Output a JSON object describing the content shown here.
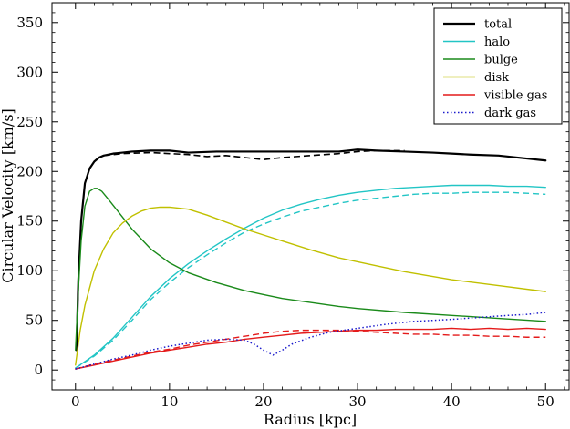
{
  "chart_data": {
    "type": "line",
    "xlabel": "Radius [kpc]",
    "ylabel": "Circular Velocity [km/s]",
    "xlim": [
      -2.5,
      52.5
    ],
    "ylim": [
      -20,
      370
    ],
    "xticks": [
      0,
      10,
      20,
      30,
      40,
      50
    ],
    "yticks": [
      0,
      50,
      100,
      150,
      200,
      250,
      300,
      350
    ],
    "legend_position": "top-right",
    "series": [
      {
        "name": "total",
        "color": "#000000",
        "style": "solid",
        "width": 2.2,
        "legend": true,
        "x": [
          0.1,
          0.3,
          0.6,
          1,
          1.5,
          2,
          2.5,
          3,
          4,
          5,
          6,
          8,
          10,
          12,
          15,
          18,
          20,
          22,
          25,
          28,
          30,
          32,
          35,
          38,
          40,
          42,
          45,
          48,
          50
        ],
        "y": [
          20,
          90,
          150,
          188,
          203,
          210,
          214,
          216,
          218,
          219,
          220,
          221,
          221,
          219,
          220,
          220,
          220,
          220,
          220,
          220,
          222,
          221,
          220,
          219,
          218,
          217,
          216,
          213,
          211
        ]
      },
      {
        "name": "",
        "color": "#000000",
        "style": "dashed",
        "width": 1.6,
        "legend": false,
        "x": [
          3,
          5,
          8,
          10,
          12,
          14,
          16,
          18,
          20,
          22,
          25,
          28,
          30,
          32,
          35
        ],
        "y": [
          216,
          218,
          219,
          218,
          217,
          215,
          216,
          214,
          212,
          214,
          216,
          218,
          220,
          221,
          221
        ]
      },
      {
        "name": "halo",
        "color": "#22c5c5",
        "style": "solid",
        "width": 1.4,
        "legend": true,
        "x": [
          0,
          2,
          4,
          6,
          8,
          10,
          12,
          14,
          16,
          18,
          20,
          22,
          24,
          26,
          28,
          30,
          32,
          34,
          36,
          38,
          40,
          42,
          44,
          46,
          48,
          50
        ],
        "y": [
          2,
          15,
          32,
          53,
          74,
          92,
          107,
          120,
          132,
          143,
          153,
          161,
          167,
          172,
          176,
          179,
          181,
          183,
          184,
          185,
          186,
          186,
          186,
          185,
          185,
          184
        ]
      },
      {
        "name": "",
        "color": "#22c5c5",
        "style": "dashed",
        "width": 1.4,
        "legend": false,
        "x": [
          0,
          2,
          4,
          6,
          8,
          10,
          12,
          14,
          16,
          18,
          20,
          22,
          24,
          26,
          28,
          30,
          32,
          34,
          36,
          38,
          40,
          42,
          44,
          46,
          48,
          50
        ],
        "y": [
          2,
          14,
          30,
          50,
          71,
          88,
          103,
          116,
          128,
          139,
          147,
          154,
          160,
          164,
          168,
          171,
          173,
          175,
          177,
          178,
          178,
          179,
          179,
          179,
          178,
          177
        ]
      },
      {
        "name": "bulge",
        "color": "#1a8a1a",
        "style": "solid",
        "width": 1.4,
        "legend": true,
        "x": [
          0,
          0.3,
          0.6,
          1,
          1.5,
          2,
          2.3,
          2.8,
          3.5,
          4.5,
          6,
          8,
          10,
          12,
          15,
          18,
          20,
          22,
          25,
          28,
          30,
          35,
          40,
          45,
          50
        ],
        "y": [
          20,
          80,
          130,
          165,
          180,
          183,
          183,
          180,
          172,
          160,
          142,
          122,
          108,
          98,
          88,
          80,
          76,
          72,
          68,
          64,
          62,
          58,
          55,
          52,
          49
        ]
      },
      {
        "name": "disk",
        "color": "#c0c000",
        "style": "solid",
        "width": 1.4,
        "legend": true,
        "x": [
          0,
          0.5,
          1,
          2,
          3,
          4,
          5,
          6,
          7,
          8,
          9,
          10,
          11,
          12,
          14,
          16,
          18,
          20,
          22,
          25,
          28,
          30,
          35,
          40,
          45,
          50
        ],
        "y": [
          5,
          40,
          65,
          100,
          122,
          138,
          148,
          155,
          160,
          163,
          164,
          164,
          163,
          162,
          156,
          149,
          142,
          136,
          130,
          121,
          113,
          109,
          99,
          91,
          85,
          79
        ]
      },
      {
        "name": "visible gas",
        "color": "#e41a1a",
        "style": "solid",
        "width": 1.4,
        "legend": true,
        "x": [
          0,
          2,
          4,
          6,
          8,
          10,
          12,
          14,
          16,
          18,
          20,
          22,
          24,
          26,
          28,
          30,
          32,
          34,
          36,
          38,
          40,
          42,
          44,
          46,
          48,
          50
        ],
        "y": [
          1,
          5,
          9,
          13,
          17,
          20,
          23,
          26,
          28,
          31,
          33,
          35,
          37,
          38,
          39,
          40,
          40,
          41,
          41,
          41,
          42,
          41,
          42,
          41,
          42,
          41
        ]
      },
      {
        "name": "",
        "color": "#e41a1a",
        "style": "dashed",
        "width": 1.4,
        "legend": false,
        "x": [
          0,
          2,
          4,
          6,
          8,
          10,
          12,
          14,
          16,
          18,
          20,
          22,
          24,
          26,
          28,
          30,
          32,
          34,
          36,
          38,
          40,
          42,
          44,
          46,
          48,
          50
        ],
        "y": [
          1,
          6,
          10,
          14,
          18,
          21,
          25,
          28,
          31,
          34,
          37,
          39,
          40,
          40,
          40,
          39,
          38,
          37,
          36,
          36,
          35,
          35,
          34,
          34,
          33,
          33
        ]
      },
      {
        "name": "dark gas",
        "color": "#1a1acc",
        "style": "dotted",
        "width": 1.5,
        "legend": true,
        "x": [
          0,
          2,
          4,
          6,
          8,
          10,
          12,
          14,
          16,
          18,
          19,
          20,
          21,
          22,
          23,
          25,
          27,
          30,
          33,
          36,
          40,
          43,
          46,
          48,
          50
        ],
        "y": [
          1,
          6,
          11,
          15,
          20,
          24,
          27,
          30,
          31,
          30,
          26,
          20,
          15,
          20,
          26,
          33,
          38,
          42,
          46,
          49,
          51,
          53,
          55,
          56,
          58
        ]
      }
    ]
  }
}
